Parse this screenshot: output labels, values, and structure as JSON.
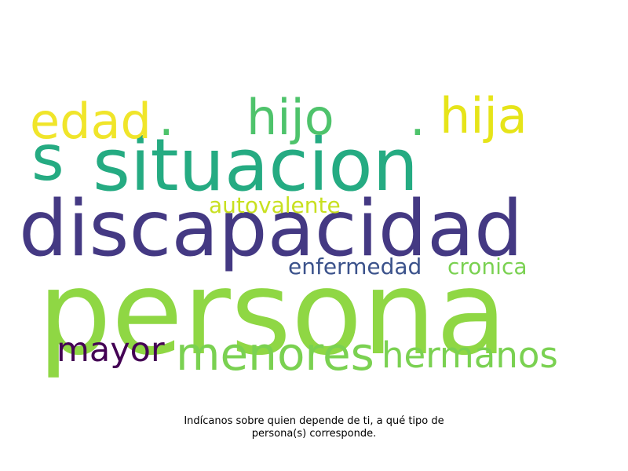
{
  "wordcloud": {
    "words": {
      "persona": {
        "text": "persona",
        "color": "#8fd744"
      },
      "discapacidad": {
        "text": "discapacidad",
        "color": "#443983"
      },
      "situacion": {
        "text": "situacion",
        "color": "#25ab82"
      },
      "s": {
        "text": "s",
        "color": "#25ab82"
      },
      "edad": {
        "text": "edad",
        "color": "#f0e52a"
      },
      "hijo": {
        "text": "hijo",
        "color": "#4ec36b"
      },
      "hija": {
        "text": "hija",
        "color": "#e6e419"
      },
      "dot1": {
        "text": ".",
        "color": "#4ec36b"
      },
      "dot2": {
        "text": ".",
        "color": "#4ec36b"
      },
      "autovalente": {
        "text": "autovalente",
        "color": "#c8e020"
      },
      "enfermedad": {
        "text": "enfermedad",
        "color": "#3b528b"
      },
      "cronica": {
        "text": "cronica",
        "color": "#7ad151"
      },
      "mayor": {
        "text": "mayor",
        "color": "#440154"
      },
      "menores": {
        "text": "menores",
        "color": "#7ad151"
      },
      "hermanos": {
        "text": "hermanos",
        "color": "#7ad151"
      }
    }
  },
  "caption": {
    "line1": "Indícanos sobre quien depende de ti, a qué tipo de",
    "line2": "persona(s) corresponde."
  }
}
